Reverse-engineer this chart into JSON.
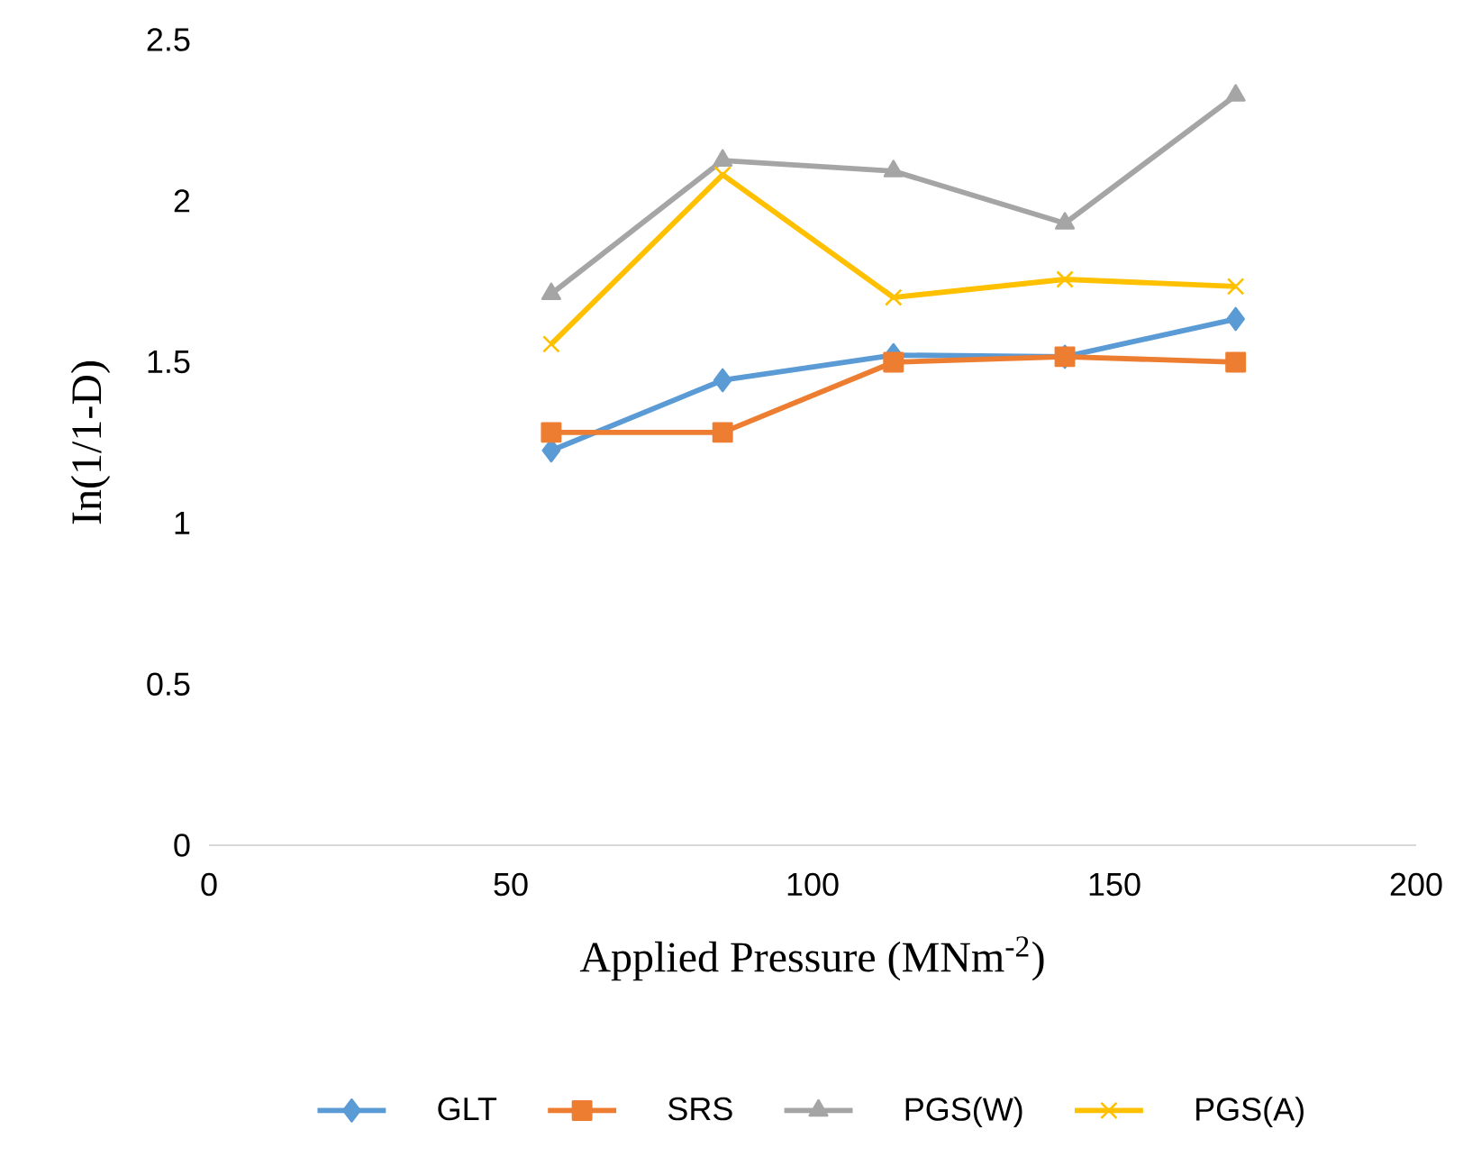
{
  "chart_data": {
    "type": "line",
    "xlabel": "Applied Pressure (MNm$^{-2}$)",
    "ylabel": "In(1/1-D)",
    "xlim": [
      0,
      200
    ],
    "xticks": [
      0,
      50,
      100,
      150,
      200
    ],
    "ylim": [
      0,
      2.5
    ],
    "yticks": [
      0,
      0.5,
      1,
      1.5,
      2,
      2.5
    ],
    "grid": false,
    "legend": "bottom",
    "x": [
      56.7,
      85.1,
      113.4,
      141.8,
      170.1
    ],
    "series": [
      {
        "name": "GLT",
        "color": "#5b9bd5",
        "marker": "diamond",
        "values": [
          1.225,
          1.443,
          1.521,
          1.516,
          1.633
        ]
      },
      {
        "name": "SRS",
        "color": "#ed7d31",
        "marker": "square",
        "values": [
          1.281,
          1.281,
          1.499,
          1.516,
          1.499
        ]
      },
      {
        "name": "PGS(W)",
        "color": "#a5a5a5",
        "marker": "triangle",
        "values": [
          1.711,
          2.125,
          2.092,
          1.93,
          2.327
        ]
      },
      {
        "name": "PGS(A)",
        "color": "#ffc000",
        "marker": "cross",
        "values": [
          1.555,
          2.081,
          1.7,
          1.756,
          1.734
        ]
      }
    ]
  }
}
